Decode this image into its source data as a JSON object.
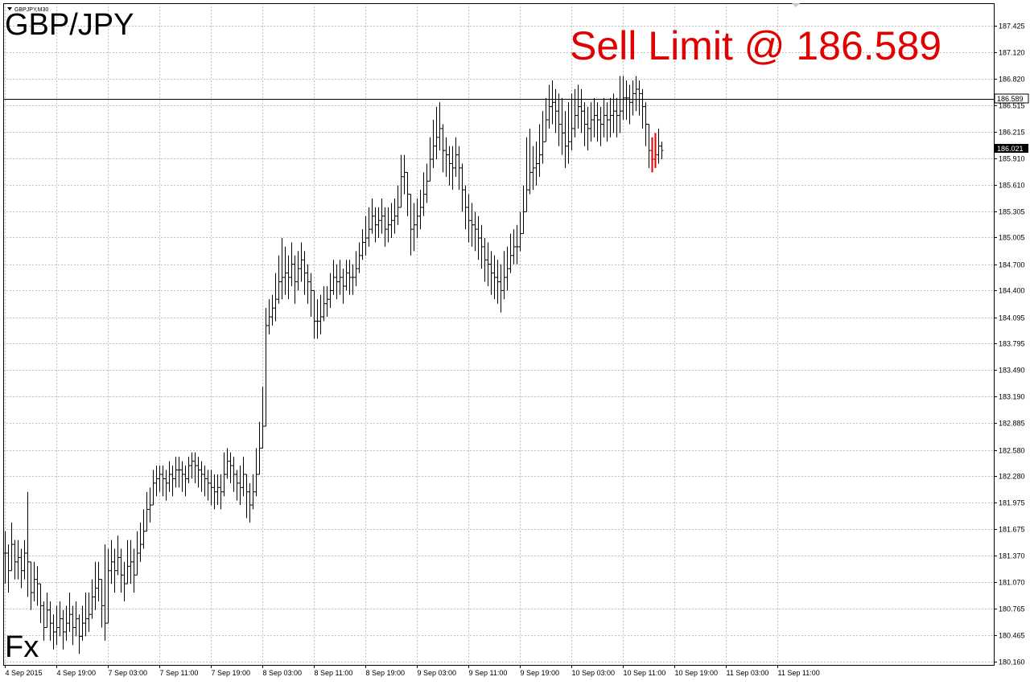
{
  "window": {
    "header": "GBPJPY,M30",
    "symbol_title": "GBP/JPY",
    "corner_label": "Fx",
    "annotation": "Sell Limit @ 186.589"
  },
  "colors": {
    "background": "#ffffff",
    "grid": "#c0c0c0",
    "bars": "#000000",
    "current_bar": "#e00000",
    "annotation": "#e00000",
    "current_price_tag": "#000000"
  },
  "chart_data": {
    "type": "ohlc",
    "symbol": "GBPJPY",
    "timeframe": "M30",
    "grid": true,
    "ylim": [
      180.16,
      187.6
    ],
    "yticks": [
      "187.425",
      "187.120",
      "186.820",
      "186.515",
      "186.215",
      "185.910",
      "185.610",
      "185.305",
      "185.005",
      "184.700",
      "184.400",
      "184.095",
      "183.795",
      "183.490",
      "183.190",
      "182.885",
      "182.580",
      "182.280",
      "181.975",
      "181.675",
      "181.370",
      "181.070",
      "180.765",
      "180.465",
      "180.160"
    ],
    "xticks": [
      "4 Sep 2015",
      "4 Sep 19:00",
      "7 Sep 03:00",
      "7 Sep 11:00",
      "7 Sep 19:00",
      "8 Sep 03:00",
      "8 Sep 11:00",
      "8 Sep 19:00",
      "9 Sep 03:00",
      "9 Sep 11:00",
      "9 Sep 19:00",
      "10 Sep 03:00",
      "10 Sep 11:00",
      "10 Sep 19:00",
      "11 Sep 03:00",
      "11 Sep 11:00"
    ],
    "bars_per_xtick": 16,
    "horizontal_line": {
      "label": "186.589",
      "value": 186.589
    },
    "current_price": {
      "label": "186.021",
      "value": 186.021
    },
    "close": [
      181.4,
      181.2,
      181.5,
      181.3,
      181.35,
      181.2,
      181.4,
      181.3,
      180.95,
      181.1,
      181.05,
      180.8,
      180.55,
      180.75,
      180.6,
      180.5,
      180.55,
      180.65,
      180.5,
      180.6,
      180.7,
      180.55,
      180.65,
      180.45,
      180.6,
      180.65,
      180.7,
      180.9,
      181.0,
      181.1,
      180.8,
      180.6,
      181.2,
      181.3,
      181.2,
      181.35,
      181.15,
      181.05,
      181.25,
      181.3,
      181.15,
      181.4,
      181.5,
      181.65,
      181.9,
      181.95,
      182.2,
      182.25,
      182.3,
      182.25,
      182.2,
      182.3,
      182.25,
      182.35,
      182.35,
      182.3,
      182.25,
      182.4,
      182.45,
      182.4,
      182.35,
      182.3,
      182.25,
      182.2,
      182.15,
      182.1,
      182.15,
      182.1,
      182.3,
      182.45,
      182.4,
      182.3,
      182.2,
      182.15,
      182.3,
      182.1,
      181.95,
      182.1,
      182.3,
      182.6,
      182.85,
      184.0,
      184.1,
      184.2,
      184.3,
      184.5,
      184.55,
      184.6,
      184.55,
      184.7,
      184.5,
      184.65,
      184.75,
      184.6,
      184.5,
      184.4,
      184.05,
      184.05,
      184.1,
      184.25,
      184.3,
      184.4,
      184.55,
      184.5,
      184.55,
      184.45,
      184.6,
      184.55,
      184.55,
      184.65,
      184.8,
      184.95,
      185.0,
      185.1,
      185.25,
      185.15,
      185.2,
      185.25,
      185.1,
      185.15,
      185.2,
      185.25,
      185.35,
      185.7,
      185.75,
      185.5,
      185.1,
      185.15,
      185.25,
      185.35,
      185.5,
      185.65,
      185.9,
      186.05,
      186.15,
      186.25,
      186.0,
      185.95,
      185.85,
      185.8,
      185.95,
      185.8,
      185.55,
      185.35,
      185.2,
      185.15,
      185.1,
      185.0,
      184.9,
      184.75,
      184.7,
      184.6,
      184.55,
      184.5,
      184.4,
      184.55,
      184.65,
      184.8,
      184.9,
      184.9,
      185.05,
      185.3,
      185.55,
      185.75,
      185.8,
      185.85,
      185.95,
      186.1,
      186.35,
      186.5,
      186.55,
      186.45,
      186.3,
      186.2,
      186.05,
      186.1,
      186.25,
      186.4,
      186.5,
      186.45,
      186.3,
      186.25,
      186.35,
      186.4,
      186.35,
      186.3,
      186.4,
      186.35,
      186.4,
      186.45,
      186.4,
      186.45,
      186.6,
      186.6,
      186.55,
      186.65,
      186.7,
      186.65,
      186.5,
      186.3,
      186.0,
      185.9,
      185.95,
      186.05,
      186.0
    ],
    "high": [
      181.65,
      181.5,
      181.75,
      181.55,
      181.55,
      181.45,
      181.55,
      182.1,
      181.2,
      181.3,
      181.25,
      181.05,
      180.85,
      180.95,
      180.85,
      180.7,
      180.8,
      180.85,
      180.75,
      180.8,
      180.95,
      180.8,
      180.85,
      180.7,
      180.8,
      180.95,
      180.95,
      181.1,
      181.3,
      181.3,
      181.1,
      181.5,
      181.45,
      181.55,
      181.45,
      181.6,
      181.45,
      181.3,
      181.55,
      181.55,
      181.45,
      181.65,
      181.75,
      181.9,
      182.1,
      182.15,
      182.35,
      182.4,
      182.4,
      182.4,
      182.35,
      182.45,
      182.4,
      182.5,
      182.5,
      182.45,
      182.4,
      182.5,
      182.55,
      182.55,
      182.5,
      182.45,
      182.4,
      182.35,
      182.35,
      182.3,
      182.3,
      182.3,
      182.55,
      182.6,
      182.55,
      182.5,
      182.35,
      182.4,
      182.5,
      182.3,
      182.2,
      182.3,
      182.6,
      182.9,
      183.3,
      184.2,
      184.3,
      184.35,
      184.6,
      184.8,
      185.0,
      184.9,
      184.8,
      184.95,
      184.8,
      184.85,
      184.95,
      184.85,
      184.7,
      184.6,
      184.35,
      184.3,
      184.35,
      184.45,
      184.45,
      184.6,
      184.75,
      184.7,
      184.75,
      184.65,
      184.75,
      184.75,
      184.7,
      184.85,
      184.95,
      185.1,
      185.25,
      185.35,
      185.45,
      185.35,
      185.35,
      185.45,
      185.35,
      185.35,
      185.4,
      185.45,
      185.6,
      185.95,
      185.95,
      185.75,
      185.35,
      185.4,
      185.45,
      185.55,
      185.75,
      185.85,
      186.15,
      186.35,
      186.5,
      186.55,
      186.3,
      186.15,
      186.05,
      186.05,
      186.15,
      186.05,
      185.85,
      185.6,
      185.5,
      185.4,
      185.3,
      185.25,
      185.15,
      185.0,
      184.95,
      184.85,
      184.8,
      184.75,
      184.7,
      184.85,
      184.9,
      185.05,
      185.1,
      185.15,
      185.3,
      185.6,
      186.15,
      186.25,
      186.05,
      186.1,
      186.3,
      186.45,
      186.6,
      186.75,
      186.8,
      186.7,
      186.65,
      186.6,
      186.45,
      186.55,
      186.65,
      186.7,
      186.75,
      186.7,
      186.55,
      186.5,
      186.55,
      186.6,
      186.55,
      186.5,
      186.6,
      186.55,
      186.6,
      186.65,
      186.6,
      186.85,
      186.85,
      186.8,
      186.75,
      186.8,
      186.85,
      186.8,
      186.7,
      186.55,
      186.2,
      186.15,
      186.2,
      186.25,
      186.1
    ],
    "low": [
      181.05,
      180.95,
      181.2,
      181.1,
      181.1,
      181.0,
      181.1,
      180.9,
      180.75,
      180.85,
      180.8,
      180.6,
      180.4,
      180.55,
      180.4,
      180.3,
      180.35,
      180.45,
      180.3,
      180.4,
      180.5,
      180.35,
      180.45,
      180.25,
      180.4,
      180.45,
      180.5,
      180.65,
      180.75,
      180.85,
      180.55,
      180.4,
      180.95,
      181.05,
      180.95,
      181.15,
      180.95,
      180.85,
      181.05,
      181.05,
      180.95,
      181.15,
      181.3,
      181.45,
      181.7,
      181.75,
      182.0,
      182.05,
      182.1,
      182.05,
      182.0,
      182.1,
      182.05,
      182.15,
      182.15,
      182.1,
      182.05,
      182.2,
      182.25,
      182.2,
      182.15,
      182.1,
      182.05,
      182.0,
      181.95,
      181.9,
      181.95,
      181.9,
      182.05,
      182.25,
      182.2,
      182.1,
      182.0,
      181.95,
      182.05,
      181.8,
      181.75,
      181.9,
      182.05,
      182.35,
      182.6,
      183.8,
      183.9,
      184.0,
      184.05,
      184.25,
      184.3,
      184.35,
      184.3,
      184.45,
      184.25,
      184.4,
      184.5,
      184.35,
      184.25,
      184.1,
      183.85,
      183.85,
      183.9,
      184.05,
      184.1,
      184.2,
      184.35,
      184.3,
      184.35,
      184.25,
      184.4,
      184.35,
      184.35,
      184.45,
      184.6,
      184.75,
      184.8,
      184.9,
      185.05,
      184.95,
      185.0,
      185.05,
      184.9,
      184.95,
      185.0,
      185.05,
      185.15,
      185.45,
      185.5,
      185.25,
      184.8,
      184.85,
      185.0,
      185.1,
      185.25,
      185.4,
      185.65,
      185.8,
      185.9,
      186.0,
      185.75,
      185.7,
      185.6,
      185.55,
      185.7,
      185.55,
      185.3,
      185.1,
      184.95,
      184.9,
      184.85,
      184.75,
      184.65,
      184.5,
      184.45,
      184.35,
      184.3,
      184.25,
      184.15,
      184.3,
      184.4,
      184.6,
      184.7,
      184.7,
      184.85,
      185.1,
      185.3,
      185.5,
      185.55,
      185.6,
      185.7,
      185.85,
      186.1,
      186.25,
      186.3,
      186.2,
      186.05,
      185.95,
      185.8,
      185.85,
      186.0,
      186.15,
      186.25,
      186.2,
      186.05,
      186.0,
      186.1,
      186.15,
      186.1,
      186.05,
      186.15,
      186.1,
      186.15,
      186.2,
      186.15,
      186.2,
      186.35,
      186.35,
      186.3,
      186.4,
      186.45,
      186.4,
      186.25,
      186.05,
      185.8,
      185.75,
      185.8,
      185.85,
      185.9
    ]
  }
}
